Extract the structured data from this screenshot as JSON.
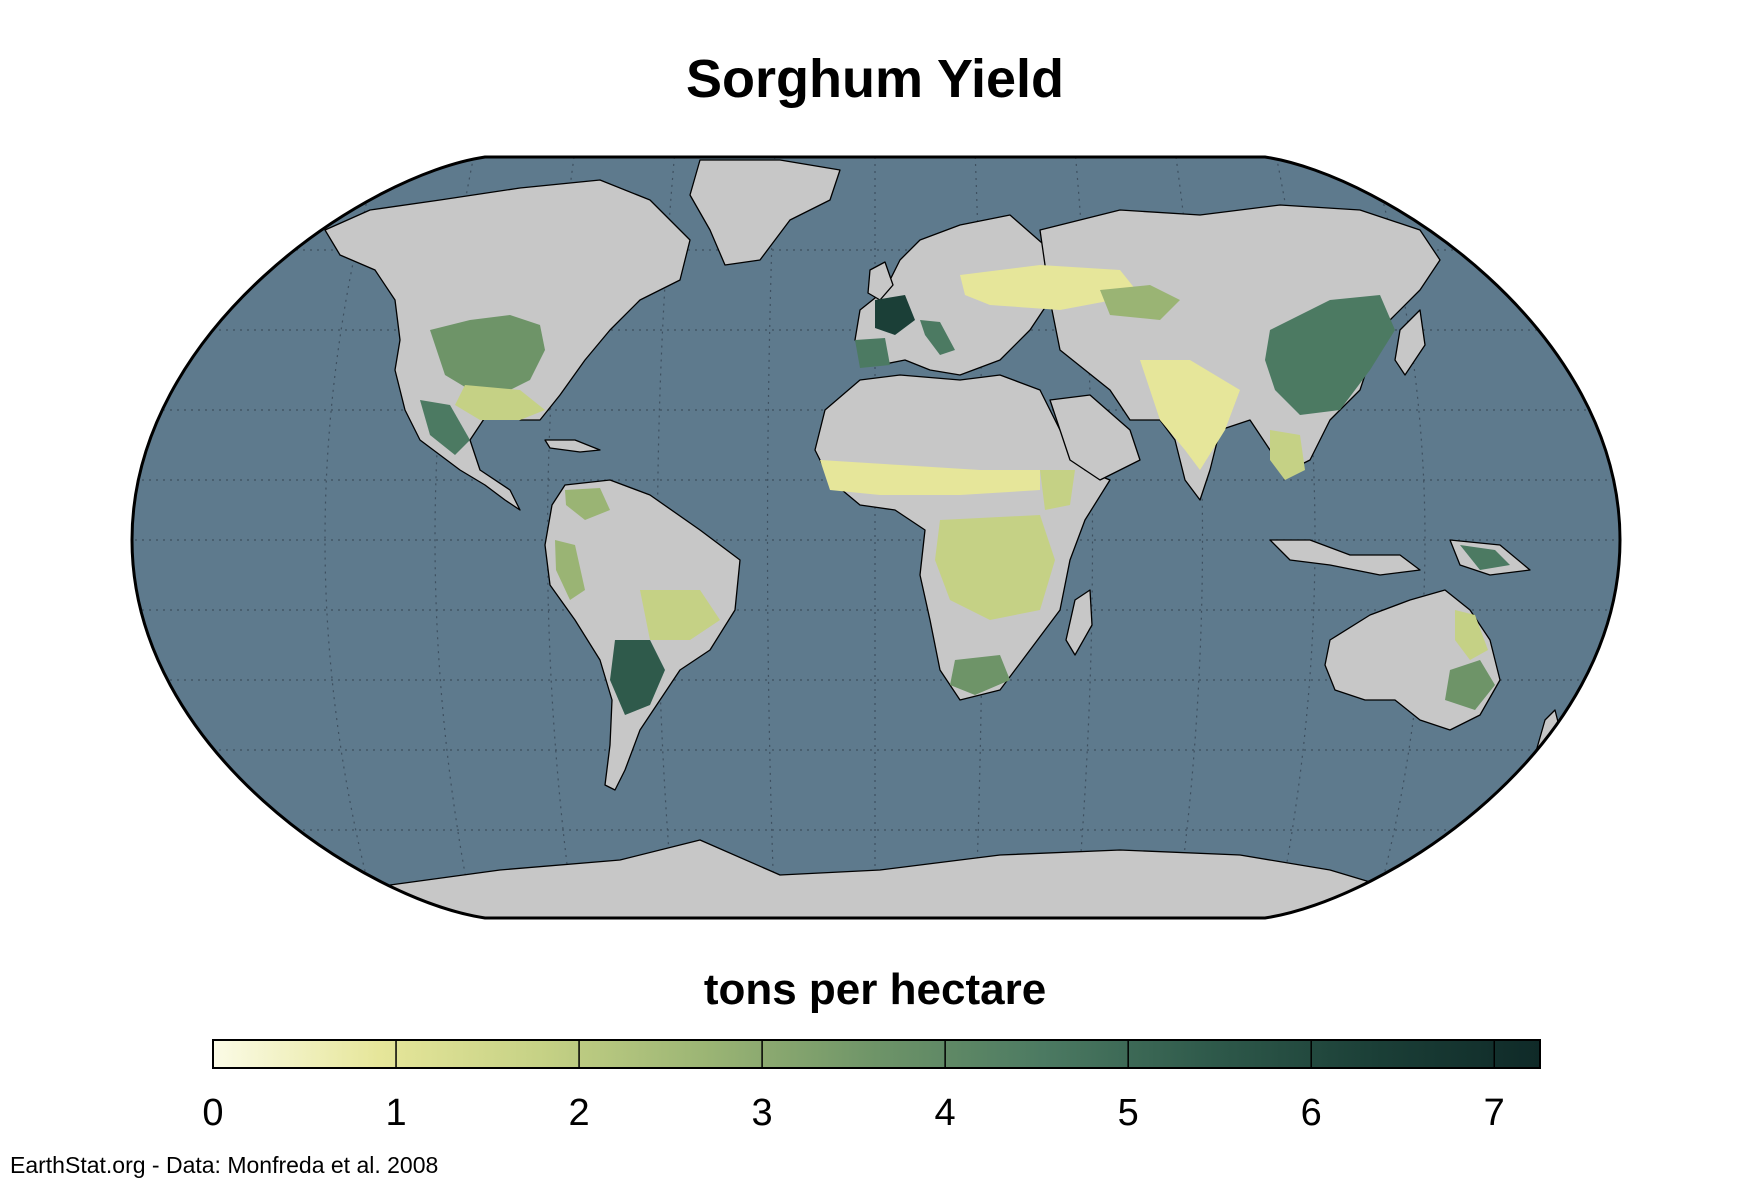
{
  "title": "Sorghum Yield",
  "legend": {
    "title": "tons per hectare",
    "min": 0,
    "max": 7.25,
    "ticks": [
      "0",
      "1",
      "2",
      "3",
      "4",
      "5",
      "6",
      "7"
    ],
    "colormap": [
      "#fbfbe6",
      "#e6e69a",
      "#c5d185",
      "#9ab474",
      "#6e9468",
      "#4c7a62",
      "#2f5a4b",
      "#1b3f37",
      "#0f2a28"
    ]
  },
  "credit": "EarthStat.org - Data: Monfreda et al. 2008",
  "colors": {
    "ocean": "#5e7a8d",
    "land": "#c7c7c7",
    "border": "#000000"
  }
}
